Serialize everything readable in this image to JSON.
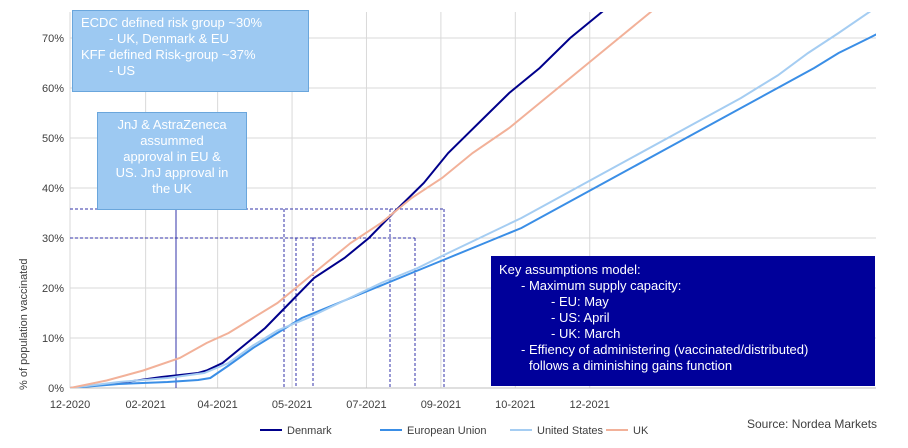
{
  "chart_data": {
    "type": "line",
    "ylabel": "% of population vaccinated",
    "y_ticks": [
      "0%",
      "10%",
      "20%",
      "30%",
      "40%",
      "50%",
      "60%",
      "70%"
    ],
    "ylim": [
      0,
      75
    ],
    "x_ticks": [
      "12-2020",
      "02-2021",
      "04-2021",
      "05-2021",
      "07-2021",
      "09-2021",
      "10-2021",
      "12-2021"
    ],
    "grid": "vertical-and-horizontal",
    "legend_position": "bottom",
    "series": [
      {
        "name": "Denmark",
        "color": "#00008b",
        "points": [
          [
            0,
            0
          ],
          [
            40,
            1
          ],
          [
            75,
            2.2
          ],
          [
            105,
            3
          ],
          [
            112,
            3.5
          ],
          [
            125,
            5
          ],
          [
            140,
            8
          ],
          [
            160,
            12
          ],
          [
            180,
            17
          ],
          [
            200,
            22
          ],
          [
            225,
            26
          ],
          [
            245,
            30
          ],
          [
            265,
            35
          ],
          [
            290,
            41
          ],
          [
            310,
            47
          ],
          [
            335,
            53
          ],
          [
            360,
            59
          ],
          [
            385,
            64
          ],
          [
            410,
            70
          ],
          [
            440,
            76
          ]
        ]
      },
      {
        "name": "European Union",
        "color": "#3a8ee6",
        "points": [
          [
            0,
            0
          ],
          [
            40,
            0.8
          ],
          [
            80,
            1.2
          ],
          [
            105,
            1.6
          ],
          [
            115,
            2
          ],
          [
            130,
            4.5
          ],
          [
            150,
            8
          ],
          [
            170,
            11
          ],
          [
            190,
            14
          ],
          [
            220,
            17
          ],
          [
            250,
            20
          ],
          [
            280,
            23
          ],
          [
            310,
            26
          ],
          [
            340,
            29
          ],
          [
            370,
            32
          ],
          [
            400,
            36
          ],
          [
            430,
            40
          ],
          [
            460,
            44
          ],
          [
            490,
            48
          ],
          [
            520,
            52
          ],
          [
            550,
            56
          ],
          [
            580,
            60
          ],
          [
            610,
            64
          ],
          [
            630,
            67
          ],
          [
            655,
            70
          ],
          [
            675,
            72.5
          ],
          [
            695,
            75
          ]
        ]
      },
      {
        "name": "United States",
        "color": "#a5cdf2",
        "points": [
          [
            0,
            0
          ],
          [
            40,
            1.2
          ],
          [
            80,
            2
          ],
          [
            110,
            3
          ],
          [
            130,
            5
          ],
          [
            150,
            8.5
          ],
          [
            170,
            11.5
          ],
          [
            195,
            14
          ],
          [
            225,
            17.5
          ],
          [
            255,
            21
          ],
          [
            285,
            24
          ],
          [
            310,
            27
          ],
          [
            340,
            30.5
          ],
          [
            370,
            34
          ],
          [
            400,
            38
          ],
          [
            430,
            42
          ],
          [
            460,
            46
          ],
          [
            490,
            50
          ],
          [
            520,
            54
          ],
          [
            550,
            58
          ],
          [
            580,
            62.5
          ],
          [
            605,
            67
          ],
          [
            630,
            71
          ],
          [
            660,
            76
          ]
        ]
      },
      {
        "name": "UK",
        "color": "#f2b199",
        "points": [
          [
            0,
            0
          ],
          [
            30,
            1.5
          ],
          [
            60,
            3.5
          ],
          [
            90,
            6
          ],
          [
            112,
            9
          ],
          [
            130,
            11
          ],
          [
            150,
            14
          ],
          [
            170,
            17
          ],
          [
            190,
            21
          ],
          [
            210,
            25
          ],
          [
            230,
            29
          ],
          [
            255,
            33
          ],
          [
            280,
            38
          ],
          [
            305,
            42
          ],
          [
            330,
            47
          ],
          [
            360,
            52
          ],
          [
            385,
            57
          ],
          [
            410,
            62
          ],
          [
            440,
            68
          ],
          [
            470,
            74
          ],
          [
            480,
            76
          ]
        ]
      }
    ],
    "x_unit": "days since 2020-12-01"
  },
  "annotations": {
    "risk_box": {
      "line1": "ECDC defined risk group ~30%",
      "line2": "- UK, Denmark & EU",
      "line3": "KFF defined Risk-group ~37%",
      "line4": "- US"
    },
    "jnj_box": {
      "line1": "JnJ & AstraZeneca",
      "line2": "assummed",
      "line3": "approval in EU &",
      "line4": "US. JnJ approval in",
      "line5": "the UK"
    },
    "model_box": {
      "line1": "Key assumptions model:",
      "line2": "- Maximum supply capacity:",
      "line3": "- EU: May",
      "line4": "- US: April",
      "line5": "- UK: March",
      "line6": "- Effiency of administering (vaccinated/distributed)",
      "line7": "follows a diminishing gains function"
    }
  },
  "source": "Source: Nordea Markets"
}
